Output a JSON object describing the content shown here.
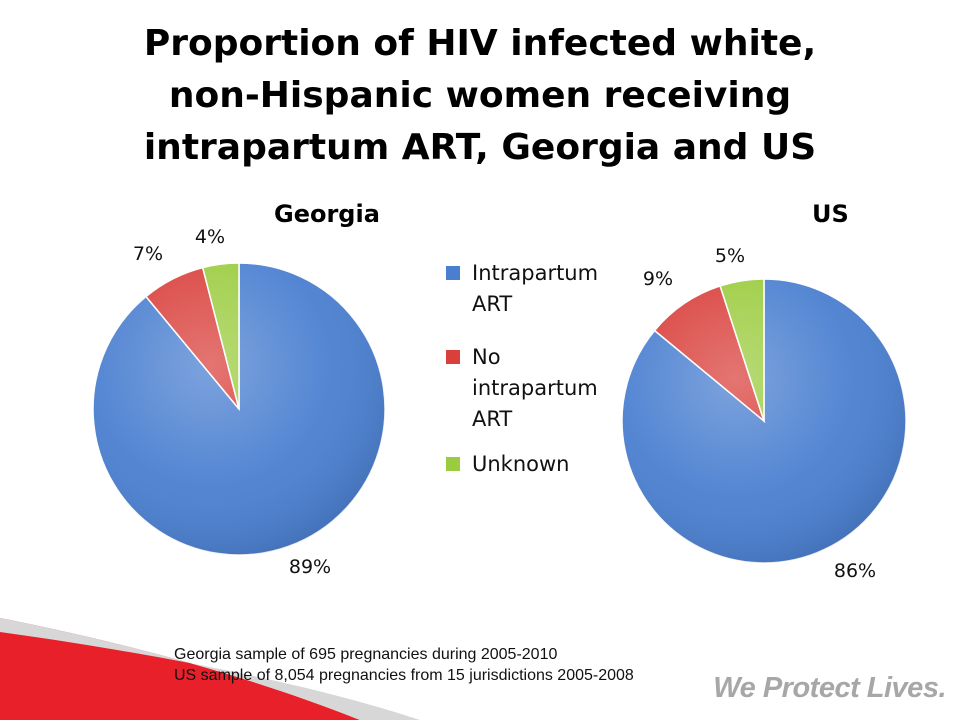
{
  "slide": {
    "title_lines": [
      "Proportion of HIV infected white,",
      "non-Hispanic women receiving",
      "intrapartum ART, Georgia and US"
    ],
    "notes": [
      "Georgia sample of 695 pregnancies during 2005-2010",
      "US sample of 8,054 pregnancies from 15 jurisdictions 2005-2008"
    ],
    "tagline": "We Protect Lives.",
    "colors": {
      "accent_red": "#e8202a",
      "blue": "#4a7fd0",
      "red": "#d9403c",
      "green": "#9bcc3f"
    }
  },
  "legend": {
    "items": [
      {
        "label_lines": [
          "Intrapartum",
          "ART"
        ],
        "color": "#4a7fd0"
      },
      {
        "label_lines": [
          "No",
          "intrapartum",
          "ART"
        ],
        "color": "#d9403c"
      },
      {
        "label_lines": [
          "Unknown"
        ],
        "color": "#9bcc3f"
      }
    ]
  },
  "chart_data": [
    {
      "type": "pie",
      "title": "Georgia",
      "categories": [
        "Intrapartum ART",
        "No intrapartum ART",
        "Unknown"
      ],
      "values": [
        89,
        7,
        4
      ],
      "labels": [
        "89%",
        "7%",
        "4%"
      ],
      "colors": [
        "#4a7fd0",
        "#d9403c",
        "#9bcc3f"
      ],
      "legend": "right"
    },
    {
      "type": "pie",
      "title": "US",
      "categories": [
        "Intrapartum ART",
        "No intrapartum ART",
        "Unknown"
      ],
      "values": [
        86,
        9,
        5
      ],
      "labels": [
        "86%",
        "9%",
        "5%"
      ],
      "colors": [
        "#4a7fd0",
        "#d9403c",
        "#9bcc3f"
      ],
      "legend": "right"
    }
  ]
}
